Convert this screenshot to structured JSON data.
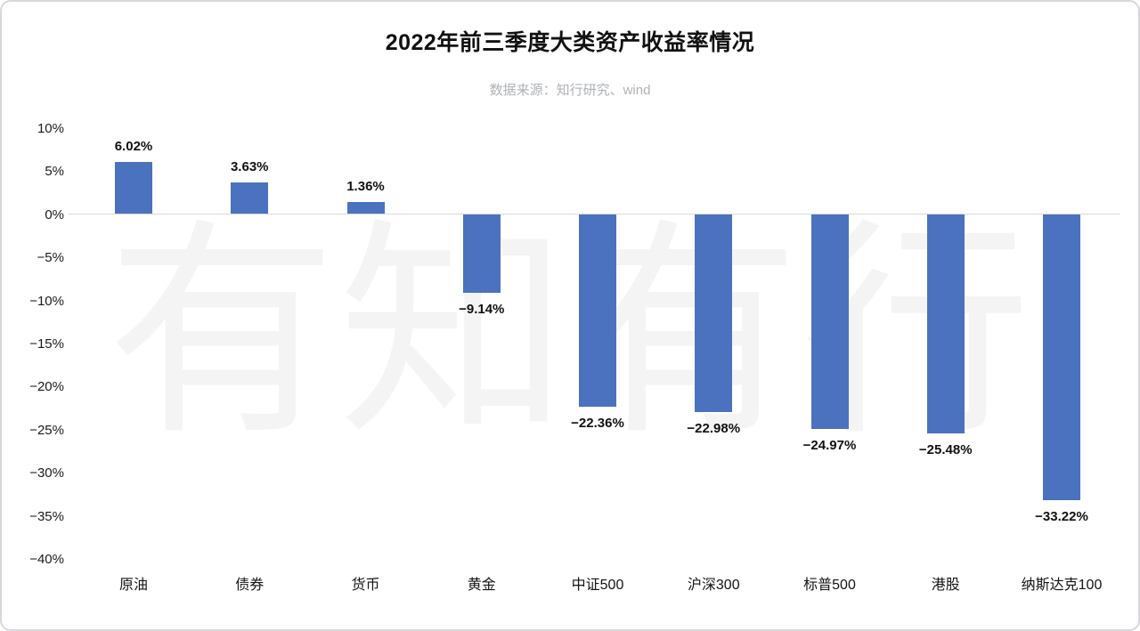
{
  "chart_data": {
    "type": "bar",
    "title": "2022年前三季度大类资产收益率情况",
    "source_note": "数据来源：知行研究、wind",
    "watermark": "有知有行",
    "categories": [
      "原油",
      "债券",
      "货币",
      "黄金",
      "中证500",
      "沪深300",
      "标普500",
      "港股",
      "纳斯达克100"
    ],
    "values": [
      6.02,
      3.63,
      1.36,
      -9.14,
      -22.36,
      -22.98,
      -24.97,
      -25.48,
      -33.22
    ],
    "value_labels": [
      "6.02%",
      "3.63%",
      "1.36%",
      "−9.14%",
      "−22.36%",
      "−22.98%",
      "−24.97%",
      "−25.48%",
      "−33.22%"
    ],
    "y_ticks": [
      "10%",
      "5%",
      "0%",
      "−5%",
      "−10%",
      "−15%",
      "−20%",
      "−25%",
      "−30%",
      "−35%",
      "−40%"
    ],
    "ylim": [
      -40,
      10
    ],
    "xlabel": "",
    "ylabel": "",
    "grid": "zero-line-only",
    "legend": "none",
    "bar_color": "#4b72be",
    "zero_line_color": "#d9d9d9",
    "watermark_color": "#f4f4f5",
    "title_color": "#111111",
    "subtitle_color": "#aeb1b6"
  }
}
